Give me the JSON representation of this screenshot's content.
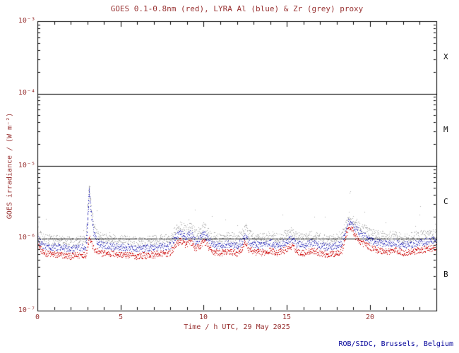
{
  "title": "GOES 0.1-0.8nm (red), LYRA Al (blue) & Zr (grey) proxy",
  "ylabel": "GOES irradiance / (W m⁻²)",
  "xlabel": "Time / h UTC, 29 May 2025",
  "credit": "ROB/SIDC, Brussels, Belgium",
  "colors": {
    "title_text": "#993333",
    "axis_text": "#993333",
    "credit_text": "#000099",
    "frame": "#000000",
    "background": "#ffffff"
  },
  "axes": {
    "y_tick_labels": [
      "10⁻³",
      "10⁻⁴",
      "10⁻⁵",
      "10⁻⁶",
      "10⁻⁷"
    ],
    "x_tick_labels": [
      "0",
      "5",
      "10",
      "15",
      "20"
    ],
    "class_labels": [
      "X",
      "M",
      "C",
      "B"
    ]
  },
  "chart_data": {
    "type": "scatter",
    "title": "GOES 0.1-0.8nm (red), LYRA Al (blue) & Zr (grey) proxy",
    "xlabel": "Time / h UTC, 29 May 2025",
    "ylabel": "GOES irradiance / (W m⁻²)",
    "x_range": [
      0,
      24
    ],
    "y_range_log10": [
      -7,
      -3
    ],
    "hlines": [
      0.0001,
      1e-05,
      1e-06
    ],
    "flare_class_labels": [
      "X",
      "M",
      "C",
      "B"
    ],
    "grid": false,
    "legend": "in title",
    "value_unit": "W m⁻²",
    "value_scale": 1e-06,
    "x": [
      0,
      0.3,
      1,
      2,
      2.9,
      3.0,
      3.1,
      3.2,
      3.4,
      3.7,
      4,
      5,
      6,
      7,
      8,
      8.3,
      8.6,
      8.9,
      9.2,
      9.5,
      9.8,
      10,
      10.2,
      10.5,
      11,
      11.5,
      12,
      12.3,
      12.5,
      12.7,
      13,
      13.5,
      14,
      14.5,
      15,
      15.3,
      15.6,
      16,
      16.5,
      17,
      17.5,
      18,
      18.3,
      18.5,
      18.7,
      18.9,
      19.2,
      19.5,
      20,
      20.5,
      21,
      21.5,
      22,
      22.5,
      23,
      23.5,
      24
    ],
    "series": [
      {
        "name": "GOES 0.1-0.8nm",
        "color": "#cc0000",
        "values": [
          0.85,
          0.63,
          0.6,
          0.57,
          0.6,
          0.75,
          1.1,
          0.9,
          0.7,
          0.63,
          0.63,
          0.6,
          0.57,
          0.6,
          0.63,
          0.82,
          0.95,
          0.82,
          0.91,
          0.72,
          0.79,
          0.95,
          0.79,
          0.66,
          0.63,
          0.66,
          0.63,
          0.72,
          0.88,
          0.72,
          0.66,
          0.63,
          0.69,
          0.63,
          0.72,
          0.79,
          0.66,
          0.63,
          0.69,
          0.63,
          0.6,
          0.63,
          0.69,
          1.0,
          1.45,
          1.35,
          1.0,
          0.88,
          0.76,
          0.69,
          0.66,
          0.69,
          0.63,
          0.66,
          0.69,
          0.72,
          0.75
        ]
      },
      {
        "name": "LYRA Al",
        "color": "#3333bb",
        "values": [
          1.05,
          0.8,
          0.76,
          0.72,
          0.76,
          1.6,
          4.5,
          2.4,
          1.12,
          0.84,
          0.8,
          0.76,
          0.72,
          0.76,
          0.8,
          1.04,
          1.2,
          1.04,
          1.16,
          0.92,
          1.0,
          1.2,
          1.0,
          0.84,
          0.8,
          0.84,
          0.8,
          0.92,
          1.12,
          0.92,
          0.84,
          0.8,
          0.88,
          0.8,
          0.92,
          1.0,
          0.84,
          0.8,
          0.88,
          0.8,
          0.76,
          0.8,
          0.88,
          1.25,
          1.7,
          1.6,
          1.3,
          1.15,
          0.96,
          0.88,
          0.84,
          0.88,
          0.8,
          0.84,
          0.88,
          0.92,
          0.96
        ]
      },
      {
        "name": "LYRA Zr",
        "color": "#aaaaaa",
        "values": [
          1.3,
          1.0,
          0.95,
          0.9,
          0.95,
          2.0,
          5.5,
          3.0,
          1.4,
          1.05,
          1.0,
          0.95,
          0.9,
          0.95,
          1.0,
          1.3,
          1.5,
          1.3,
          1.45,
          1.15,
          1.25,
          1.5,
          1.25,
          1.05,
          1.0,
          1.05,
          1.0,
          1.15,
          1.4,
          1.15,
          1.05,
          1.0,
          1.1,
          1.0,
          1.15,
          1.25,
          1.05,
          1.0,
          1.1,
          1.0,
          0.95,
          1.0,
          1.1,
          1.5,
          2.0,
          1.9,
          1.6,
          1.4,
          1.2,
          1.1,
          1.05,
          1.1,
          1.0,
          1.05,
          1.1,
          1.15,
          1.2
        ]
      }
    ]
  }
}
